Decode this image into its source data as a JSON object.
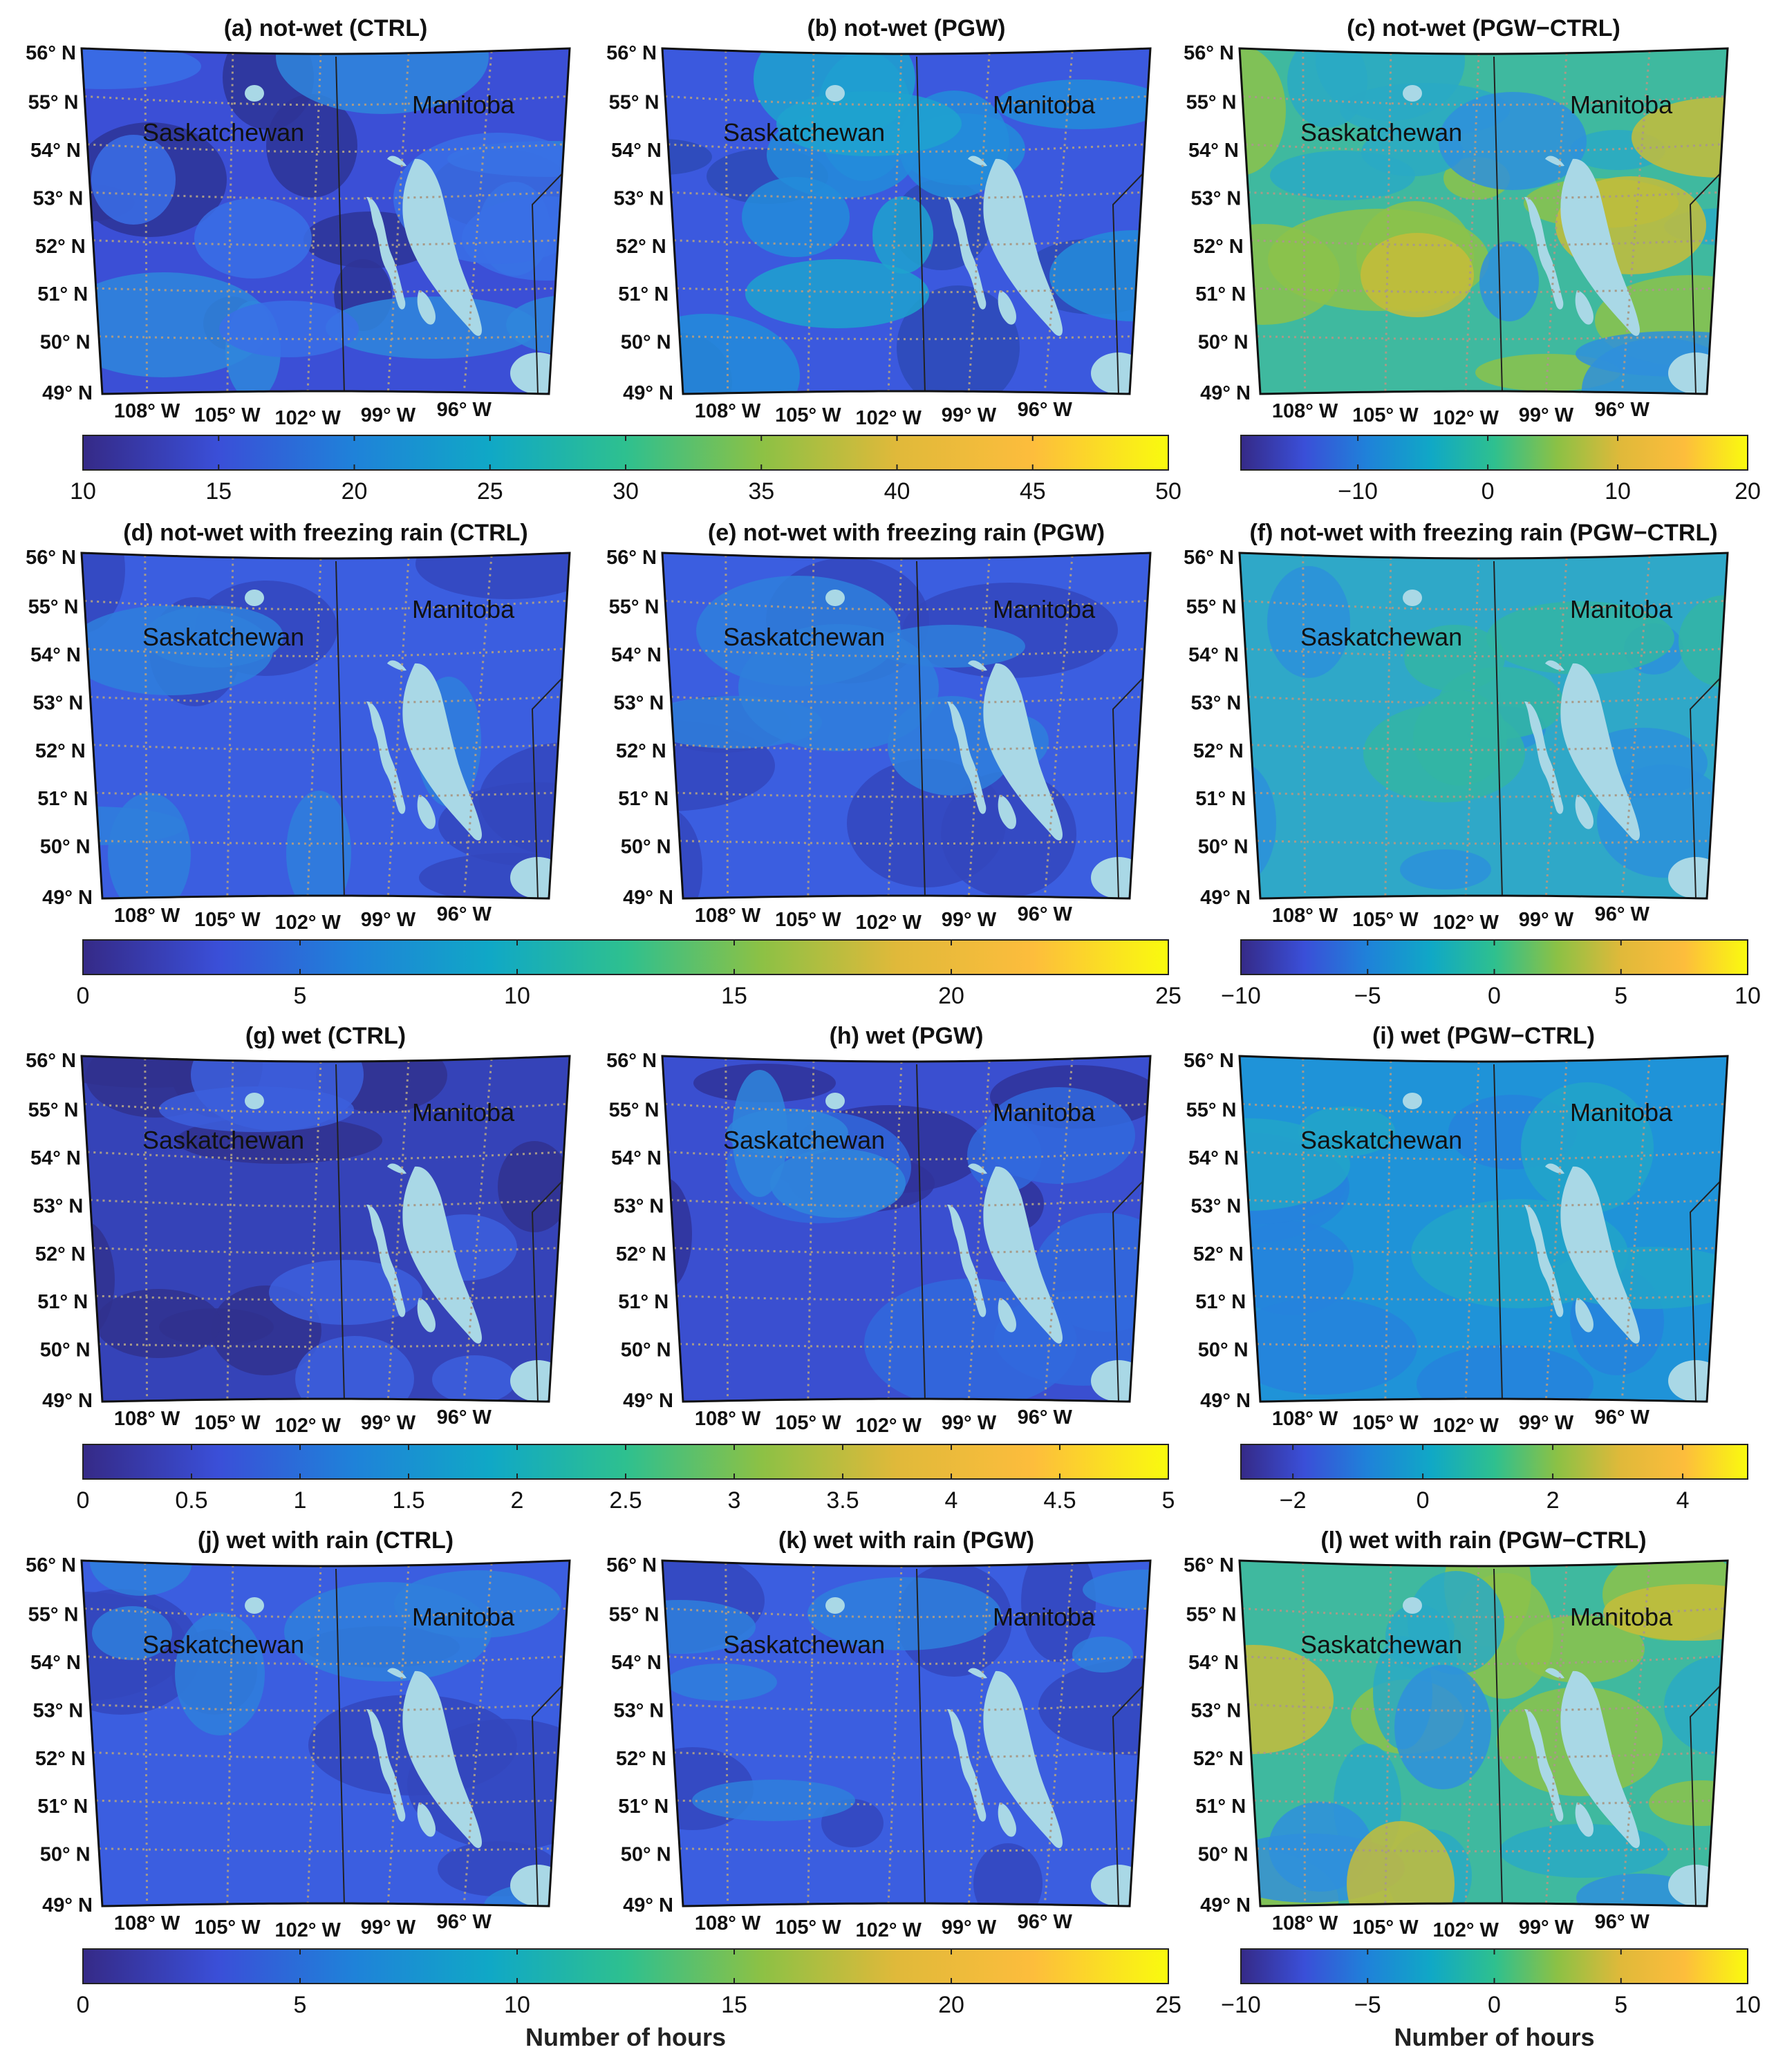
{
  "figure": {
    "panels": [
      {
        "title": "(a) not-wet (CTRL)",
        "cmap": "a",
        "field": "ctrl"
      },
      {
        "title": "(b) not-wet (PGW)",
        "cmap": "a",
        "field": "pgw"
      },
      {
        "title": "(c) not-wet (PGW−CTRL)",
        "cmap": "b",
        "field": "diffhigh"
      },
      {
        "title": "(d) not-wet with freezing rain (CTRL)",
        "cmap": "a",
        "field": "lowblue"
      },
      {
        "title": "(e) not-wet with freezing rain (PGW)",
        "cmap": "a",
        "field": "lowblue"
      },
      {
        "title": "(f) not-wet with freezing rain (PGW−CTRL)",
        "cmap": "b",
        "field": "diffmid"
      },
      {
        "title": "(g) wet (CTRL)",
        "cmap": "a",
        "field": "dark"
      },
      {
        "title": "(h) wet (PGW)",
        "cmap": "a",
        "field": "darkmid"
      },
      {
        "title": "(i) wet (PGW−CTRL)",
        "cmap": "b",
        "field": "diffcyan"
      },
      {
        "title": "(j) wet with rain (CTRL)",
        "cmap": "a",
        "field": "lowblue"
      },
      {
        "title": "(k) wet with rain (PGW)",
        "cmap": "a",
        "field": "lowblue"
      },
      {
        "title": "(l) wet with rain (PGW−CTRL)",
        "cmap": "b",
        "field": "diffhigh"
      }
    ],
    "lat_labels": [
      "56° N",
      "55° N",
      "54° N",
      "53° N",
      "52° N",
      "51° N",
      "50° N",
      "49° N"
    ],
    "lon_labels": [
      "108° W",
      "105° W",
      "102° W",
      "99° W",
      "96° W"
    ],
    "province_labels": [
      "Saskatchewan",
      "Manitoba"
    ],
    "colorbars": [
      {
        "row": 0,
        "side": "left",
        "ticks": [
          "10",
          "15",
          "20",
          "25",
          "30",
          "35",
          "40",
          "45",
          "50"
        ],
        "range": [
          10,
          50
        ],
        "label": ""
      },
      {
        "row": 0,
        "side": "right",
        "ticks": [
          "−10",
          "0",
          "10",
          "20"
        ],
        "tick_values": [
          -10,
          0,
          10,
          20
        ],
        "range": [
          -19,
          20
        ],
        "label": ""
      },
      {
        "row": 1,
        "side": "left",
        "ticks": [
          "0",
          "5",
          "10",
          "15",
          "20",
          "25"
        ],
        "range": [
          0,
          25
        ],
        "label": ""
      },
      {
        "row": 1,
        "side": "right",
        "ticks": [
          "−10",
          "−5",
          "0",
          "5",
          "10"
        ],
        "range": [
          -10,
          10
        ],
        "label": ""
      },
      {
        "row": 2,
        "side": "left",
        "ticks": [
          "0",
          "0.5",
          "1",
          "1.5",
          "2",
          "2.5",
          "3",
          "3.5",
          "4",
          "4.5",
          "5"
        ],
        "range": [
          0,
          5
        ],
        "label": ""
      },
      {
        "row": 2,
        "side": "right",
        "ticks": [
          "−2",
          "0",
          "2",
          "4"
        ],
        "tick_values": [
          -2,
          0,
          2,
          4
        ],
        "range": [
          -2.8,
          5
        ],
        "label": ""
      },
      {
        "row": 3,
        "side": "left",
        "ticks": [
          "0",
          "5",
          "10",
          "15",
          "20",
          "25"
        ],
        "range": [
          0,
          25
        ],
        "label": "Number of hours"
      },
      {
        "row": 3,
        "side": "right",
        "ticks": [
          "−10",
          "−5",
          "0",
          "5",
          "10"
        ],
        "range": [
          -10,
          10
        ],
        "label": "Number of hours"
      }
    ],
    "colors": {
      "colormap_stops": [
        "#352a87",
        "#3a4fd8",
        "#1f82d9",
        "#10a8c6",
        "#2ec08f",
        "#8cc145",
        "#e0b93a",
        "#fdbd3c",
        "#f9fb0e"
      ],
      "lake": "#a9d8e6",
      "grid": "#a89a88",
      "frame": "#111111"
    }
  }
}
